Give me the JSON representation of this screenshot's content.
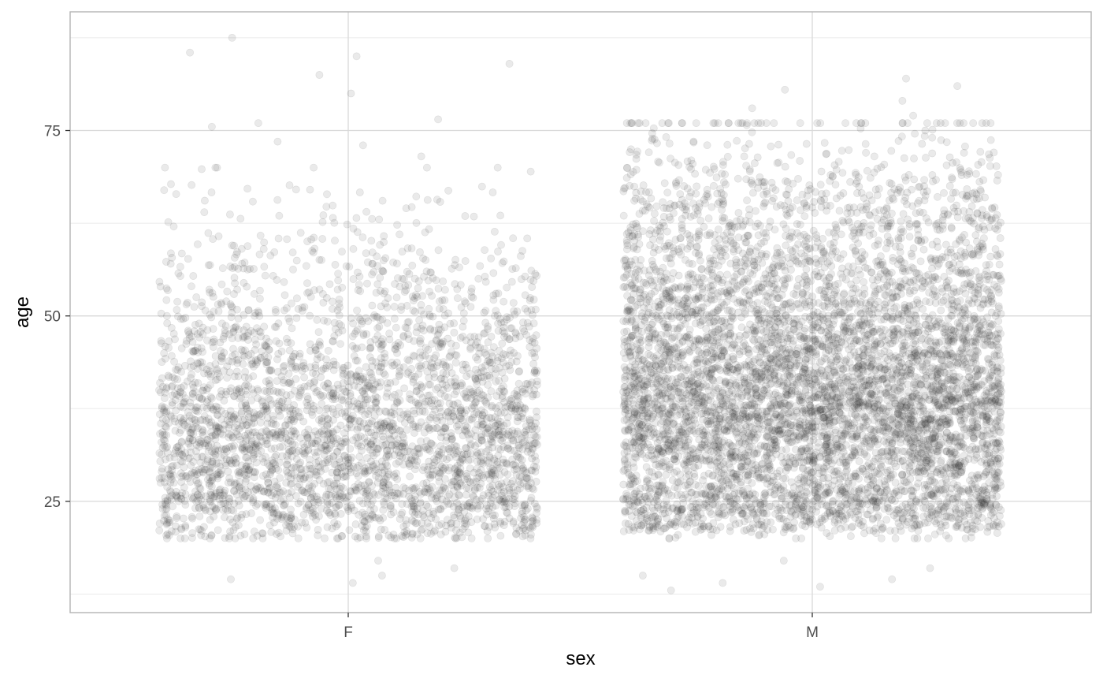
{
  "chart_data": {
    "type": "scatter",
    "style": "jitter strip plot, semi-transparent grey points",
    "title": "",
    "xlabel": "sex",
    "ylabel": "age",
    "categories": [
      "F",
      "M"
    ],
    "x_tick_labels": [
      "F",
      "M"
    ],
    "y_ticks": [
      25,
      50,
      75
    ],
    "y_tick_labels": [
      "25",
      "50",
      "75"
    ],
    "ylim": [
      10,
      91
    ],
    "grid": true,
    "legend": "none",
    "point_color": "#333333",
    "point_alpha": 0.1,
    "series": [
      {
        "category": "F",
        "approx_count": 3400,
        "typical_age_range": [
          22,
          62
        ],
        "approx_median_age": 36,
        "extreme_points": [
          {
            "x": "F",
            "y": 87.5
          },
          {
            "x": "F",
            "y": 82.5
          },
          {
            "x": "F",
            "y": 84
          },
          {
            "x": "F",
            "y": 80
          },
          {
            "x": "F",
            "y": 76.5
          },
          {
            "x": "F",
            "y": 73.5
          },
          {
            "x": "F",
            "y": 85.5
          },
          {
            "x": "F",
            "y": 85
          },
          {
            "x": "F",
            "y": 76
          },
          {
            "x": "F",
            "y": 75.5
          },
          {
            "x": "F",
            "y": 73
          },
          {
            "x": "F",
            "y": 71.5
          },
          {
            "x": "F",
            "y": 70
          },
          {
            "x": "F",
            "y": 14
          },
          {
            "x": "F",
            "y": 14.5
          },
          {
            "x": "F",
            "y": 15
          },
          {
            "x": "F",
            "y": 16
          },
          {
            "x": "F",
            "y": 17
          }
        ]
      },
      {
        "category": "M",
        "approx_count": 6600,
        "typical_age_range": [
          23,
          68
        ],
        "approx_median_age": 42,
        "extreme_points": [
          {
            "x": "M",
            "y": 82
          },
          {
            "x": "M",
            "y": 81
          },
          {
            "x": "M",
            "y": 80.5
          },
          {
            "x": "M",
            "y": 79
          },
          {
            "x": "M",
            "y": 78
          },
          {
            "x": "M",
            "y": 77
          },
          {
            "x": "M",
            "y": 76
          },
          {
            "x": "M",
            "y": 75
          },
          {
            "x": "M",
            "y": 13
          },
          {
            "x": "M",
            "y": 13.5
          },
          {
            "x": "M",
            "y": 14
          },
          {
            "x": "M",
            "y": 14.5
          },
          {
            "x": "M",
            "y": 15
          },
          {
            "x": "M",
            "y": 16
          },
          {
            "x": "M",
            "y": 17
          }
        ]
      }
    ]
  }
}
